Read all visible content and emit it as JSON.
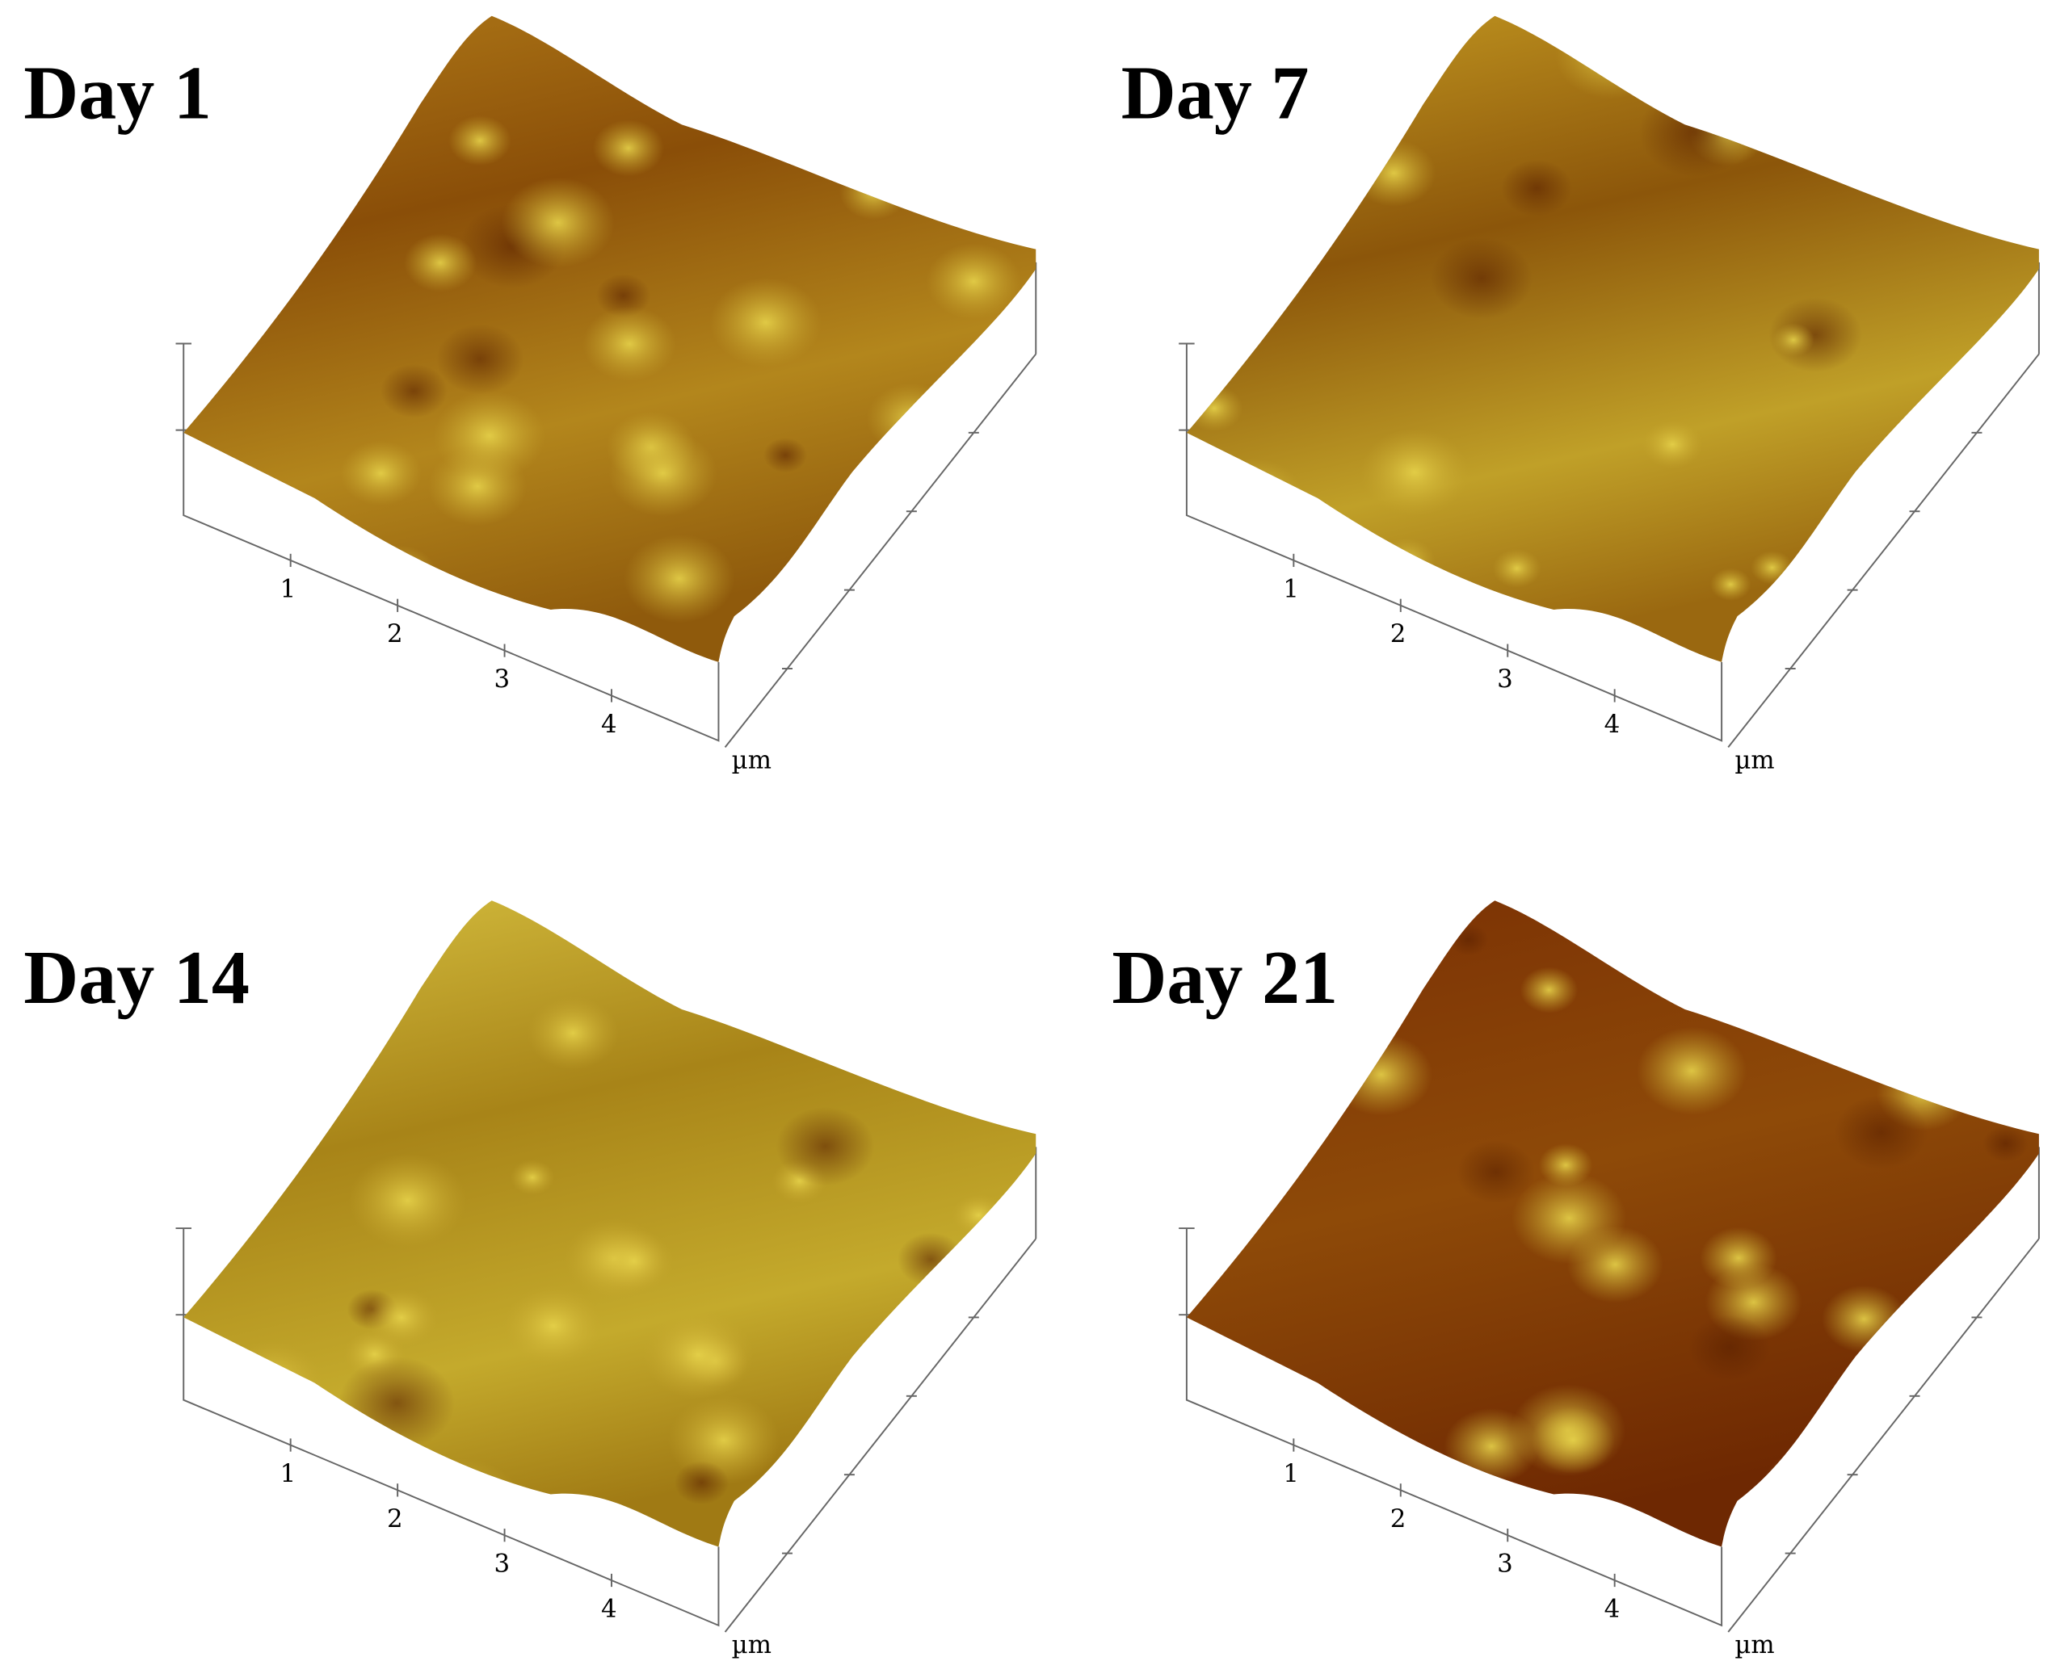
{
  "panels": [
    {
      "title": "Day 1",
      "x_ticks": [
        "1",
        "2",
        "3",
        "4"
      ],
      "unit": "µm"
    },
    {
      "title": "Day 7",
      "x_ticks": [
        "1",
        "2",
        "3",
        "4"
      ],
      "unit": "µm"
    },
    {
      "title": "Day 14",
      "x_ticks": [
        "1",
        "2",
        "3",
        "4"
      ],
      "unit": "µm"
    },
    {
      "title": "Day 21",
      "x_ticks": [
        "1",
        "2",
        "3",
        "4"
      ],
      "unit": "µm"
    }
  ]
}
